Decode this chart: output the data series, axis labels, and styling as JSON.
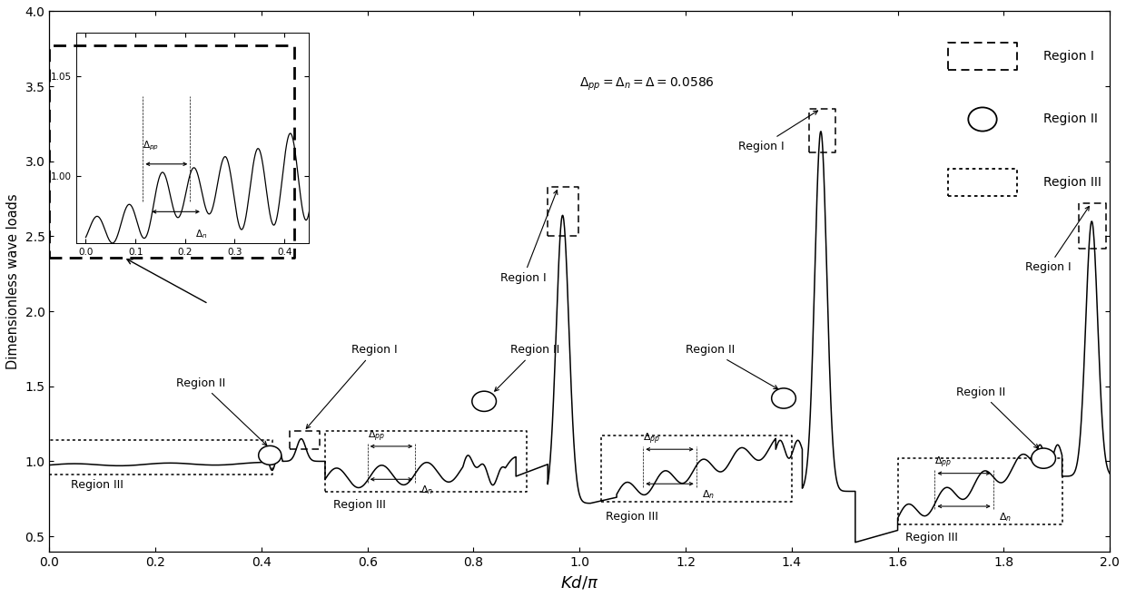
{
  "title": "",
  "xlabel": "$Kd/\\pi$",
  "ylabel": "Dimensionless wave loads",
  "xlim": [
    0.0,
    2.0
  ],
  "ylim": [
    0.4,
    4.0
  ],
  "yticks": [
    0.5,
    1.0,
    1.5,
    2.0,
    2.5,
    3.0,
    3.5,
    4.0
  ],
  "xticks": [
    0.0,
    0.2,
    0.4,
    0.6,
    0.8,
    1.0,
    1.2,
    1.4,
    1.6,
    1.8,
    2.0
  ],
  "line_color": "#000000",
  "background_color": "#ffffff",
  "annotation_text": "$\\Delta_{pp} = \\Delta_n = \\Delta = 0.0586$"
}
